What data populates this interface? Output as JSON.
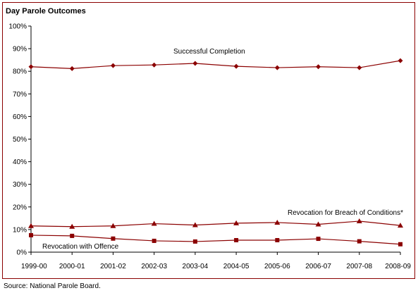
{
  "chart_data": {
    "type": "line",
    "title": "Day Parole Outcomes",
    "xlabel": "",
    "ylabel": "",
    "categories": [
      "1999-00",
      "2000-01",
      "2001-02",
      "2002-03",
      "2003-04",
      "2004-05",
      "2005-06",
      "2006-07",
      "2007-08",
      "2008-09"
    ],
    "ylim": [
      0,
      100
    ],
    "yticks": [
      "0%",
      "10%",
      "20%",
      "30%",
      "40%",
      "50%",
      "60%",
      "70%",
      "80%",
      "90%",
      "100%"
    ],
    "grid": false,
    "series": [
      {
        "name": "Successful Completion",
        "marker": "diamond",
        "color": "#8b0000",
        "values": [
          82,
          81.2,
          82.5,
          82.8,
          83.5,
          82.2,
          81.6,
          82,
          81.6,
          84.7
        ]
      },
      {
        "name": "Revocation for Breach of Conditions*",
        "marker": "triangle",
        "color": "#8b0000",
        "values": [
          11.6,
          11.3,
          11.6,
          12.6,
          12,
          12.8,
          13.1,
          12.3,
          13.7,
          11.8
        ]
      },
      {
        "name": "Revocation with Offence",
        "marker": "square",
        "color": "#8b0000",
        "values": [
          7.5,
          7.2,
          6,
          5,
          4.7,
          5.3,
          5.3,
          5.9,
          4.8,
          3.5
        ]
      }
    ]
  },
  "source": "Source:  National Parole Board."
}
